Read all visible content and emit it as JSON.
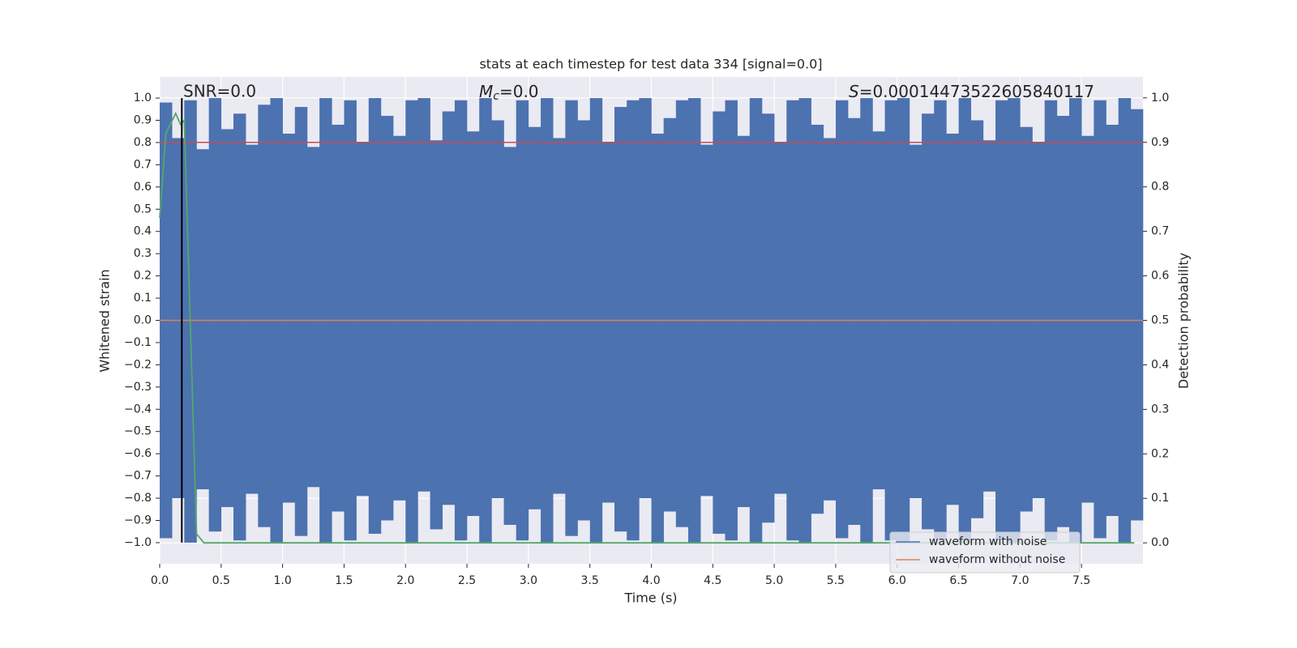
{
  "chart_data": {
    "type": "line",
    "title": "stats at each timestep for test data 334 [signal=0.0]",
    "xlabel": "Time (s)",
    "ylabel": "Whitened strain",
    "y2label": "Detection probability",
    "annotations": [
      {
        "text": "SNR=0.0"
      },
      {
        "symbol": "M",
        "subscript": "c",
        "text": "=0.0"
      },
      {
        "symbol": "S",
        "text": "=0.00014473522605840117"
      }
    ],
    "xlim": [
      0,
      8.0
    ],
    "ylim": [
      -1.095,
      1.095
    ],
    "y2lim": [
      -0.047,
      1.047
    ],
    "xticks": [
      {
        "value": 0,
        "label": "0.0"
      },
      0.5,
      {
        "value": 1,
        "label": "1.0"
      },
      1.5,
      {
        "value": 2,
        "label": "2.0"
      },
      2.5,
      {
        "value": 3,
        "label": "3.0"
      },
      3.5,
      {
        "value": 4,
        "label": "4.0"
      },
      4.5,
      {
        "value": 5,
        "label": "5.0"
      },
      5.5,
      {
        "value": 6,
        "label": "6.0"
      },
      6.5,
      {
        "value": 7,
        "label": "7.0"
      },
      7.5
    ],
    "yticks": [
      {
        "value": 1,
        "label": "1.0"
      },
      0.9,
      0.8,
      0.7,
      0.6,
      0.5,
      0.4,
      0.3,
      0.2,
      0.1,
      {
        "value": 0,
        "label": "0.0"
      },
      {
        "value": -0.1,
        "label": "−0.1"
      },
      {
        "value": -0.2,
        "label": "−0.2"
      },
      {
        "value": -0.3,
        "label": "−0.3"
      },
      {
        "value": -0.4,
        "label": "−0.4"
      },
      {
        "value": -0.5,
        "label": "−0.5"
      },
      {
        "value": -0.6,
        "label": "−0.6"
      },
      {
        "value": -0.7,
        "label": "−0.7"
      },
      {
        "value": -0.8,
        "label": "−0.8"
      },
      {
        "value": -0.9,
        "label": "−0.9"
      },
      {
        "value": -1,
        "label": "−1.0"
      }
    ],
    "y2ticks": [
      {
        "value": 0,
        "label": "0.0"
      },
      0.1,
      0.2,
      0.3,
      0.4,
      0.5,
      0.6,
      0.7,
      0.8,
      0.9,
      {
        "value": 1,
        "label": "1.0"
      }
    ],
    "grid": true,
    "legend": "lower right",
    "noise": {
      "name": "waveform with noise",
      "color": "#4c72b0",
      "x": [
        0.0,
        0.1,
        0.2,
        0.3,
        0.4,
        0.5,
        0.6,
        0.7,
        0.8,
        0.9,
        1.0,
        1.1,
        1.2,
        1.3,
        1.4,
        1.5,
        1.6,
        1.7,
        1.8,
        1.9,
        2.0,
        2.1,
        2.2,
        2.3,
        2.4,
        2.5,
        2.6,
        2.7,
        2.8,
        2.9,
        3.0,
        3.1,
        3.2,
        3.3,
        3.4,
        3.5,
        3.6,
        3.7,
        3.8,
        3.9,
        4.0,
        4.1,
        4.2,
        4.3,
        4.4,
        4.5,
        4.6,
        4.7,
        4.8,
        4.9,
        5.0,
        5.1,
        5.2,
        5.3,
        5.4,
        5.5,
        5.6,
        5.7,
        5.8,
        5.9,
        6.0,
        6.1,
        6.2,
        6.3,
        6.4,
        6.5,
        6.6,
        6.7,
        6.8,
        6.9,
        7.0,
        7.1,
        7.2,
        7.3,
        7.4,
        7.5,
        7.6,
        7.7,
        7.8,
        7.9
      ],
      "high": [
        0.98,
        0.82,
        0.99,
        0.77,
        1.0,
        0.86,
        0.93,
        0.79,
        0.97,
        1.0,
        0.84,
        0.96,
        0.78,
        1.0,
        0.88,
        0.99,
        0.8,
        1.0,
        0.92,
        0.83,
        0.99,
        1.0,
        0.81,
        0.94,
        0.99,
        0.85,
        1.0,
        0.9,
        0.78,
        0.99,
        0.87,
        1.0,
        0.82,
        0.99,
        0.9,
        1.0,
        0.8,
        0.96,
        0.99,
        1.0,
        0.84,
        0.91,
        0.99,
        1.0,
        0.79,
        0.94,
        0.99,
        0.83,
        1.0,
        0.93,
        0.8,
        0.99,
        1.0,
        0.88,
        0.82,
        0.99,
        0.91,
        1.0,
        0.85,
        0.99,
        1.0,
        0.79,
        0.93,
        0.99,
        0.84,
        1.0,
        0.9,
        0.81,
        0.99,
        1.0,
        0.87,
        0.8,
        0.99,
        0.92,
        1.0,
        0.83,
        0.99,
        0.88,
        1.0,
        0.95
      ],
      "low": [
        -0.98,
        -0.8,
        -1.0,
        -0.76,
        -0.95,
        -0.84,
        -0.99,
        -0.78,
        -0.93,
        -1.0,
        -0.82,
        -0.97,
        -0.75,
        -1.0,
        -0.86,
        -0.99,
        -0.79,
        -0.96,
        -0.9,
        -0.81,
        -1.0,
        -0.77,
        -0.94,
        -0.83,
        -0.99,
        -0.88,
        -1.0,
        -0.8,
        -0.92,
        -0.99,
        -0.85,
        -1.0,
        -0.78,
        -0.97,
        -0.9,
        -1.0,
        -0.82,
        -0.95,
        -0.99,
        -0.8,
        -1.0,
        -0.86,
        -0.93,
        -1.0,
        -0.79,
        -0.96,
        -0.99,
        -0.84,
        -1.0,
        -0.91,
        -0.78,
        -0.99,
        -1.0,
        -0.87,
        -0.81,
        -0.98,
        -0.92,
        -1.0,
        -0.76,
        -0.99,
        -1.0,
        -0.8,
        -0.94,
        -0.99,
        -0.83,
        -1.0,
        -0.89,
        -0.77,
        -0.99,
        -1.0,
        -0.86,
        -0.8,
        -0.99,
        -0.93,
        -1.0,
        -0.82,
        -0.98,
        -0.88,
        -1.0,
        -0.9
      ]
    },
    "series": [
      {
        "name": "waveform with noise",
        "color": "#4c72b0"
      },
      {
        "name": "waveform without noise",
        "color": "#dd8452",
        "x": [
          0,
          8.0
        ],
        "values": [
          0,
          0
        ]
      }
    ],
    "probability": {
      "color": "#55a868",
      "axis": "y2",
      "x": [
        0,
        0.05,
        0.13,
        0.17,
        0.2,
        0.3,
        0.36,
        7.93
      ],
      "values": [
        0.73,
        0.92,
        0.965,
        0.94,
        0.95,
        0.02,
        0,
        0
      ]
    },
    "threshold": {
      "color": "#c44e52",
      "axis": "y2",
      "value": 0.9
    },
    "vline": {
      "color": "#000000",
      "x": 0.18,
      "ymin": -1,
      "ymax": 1
    }
  }
}
